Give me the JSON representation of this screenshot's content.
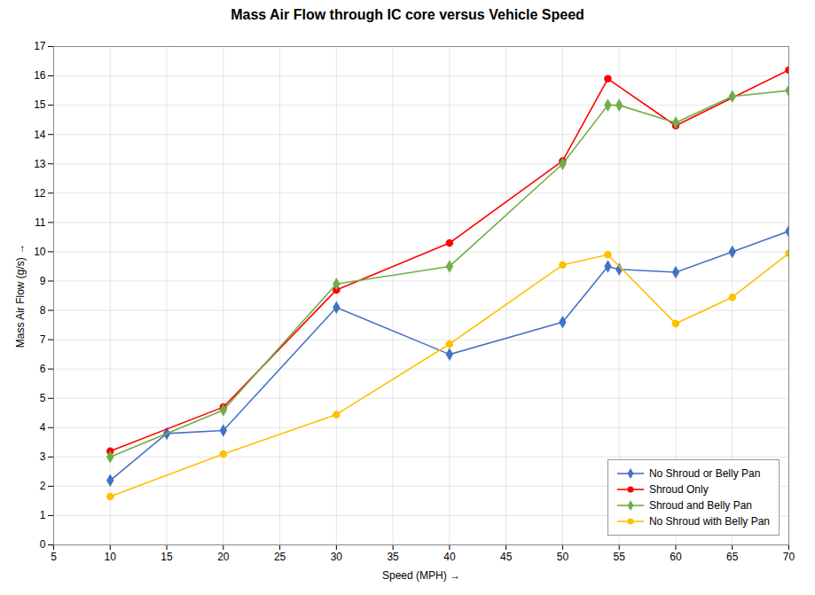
{
  "chart_data": {
    "type": "line",
    "title": "Mass Air Flow through IC core versus Vehicle Speed",
    "x_label": "Speed (MPH)",
    "y_label": "Mass Air Flow (g/s)",
    "xlim": [
      5,
      70
    ],
    "ylim": [
      0,
      17
    ],
    "xticks": [
      5,
      10,
      15,
      20,
      25,
      30,
      35,
      40,
      45,
      50,
      55,
      60,
      65,
      70
    ],
    "yticks": [
      0,
      1,
      2,
      3,
      4,
      5,
      6,
      7,
      8,
      9,
      10,
      11,
      12,
      13,
      14,
      15,
      16,
      17
    ],
    "grid": true,
    "legend": "lower right",
    "series": [
      {
        "name": "No Shroud or Belly Pan",
        "color": "#4472C4",
        "marker": "diamond",
        "x": [
          10,
          15,
          20,
          30,
          40,
          50,
          54,
          55,
          60,
          65,
          70
        ],
        "values": [
          2.2,
          3.8,
          3.9,
          8.1,
          6.5,
          7.6,
          9.5,
          9.4,
          9.3,
          10.0,
          10.7
        ]
      },
      {
        "name": "Shroud Only",
        "color": "#FF0000",
        "marker": "circle",
        "x": [
          10,
          20,
          30,
          40,
          50,
          54,
          60,
          70
        ],
        "values": [
          3.2,
          4.7,
          8.7,
          10.3,
          13.1,
          15.9,
          14.3,
          16.2
        ]
      },
      {
        "name": "Shroud and Belly Pan",
        "color": "#70AD47",
        "marker": "diamond",
        "x": [
          10,
          20,
          30,
          40,
          50,
          54,
          55,
          60,
          65,
          70
        ],
        "values": [
          3.0,
          4.6,
          8.9,
          9.5,
          13.0,
          15.0,
          15.0,
          14.4,
          15.3,
          15.5
        ]
      },
      {
        "name": "No Shroud with Belly Pan",
        "color": "#FFC000",
        "marker": "circle",
        "x": [
          10,
          20,
          30,
          40,
          50,
          54,
          60,
          65,
          70
        ],
        "values": [
          1.65,
          3.1,
          4.45,
          6.85,
          9.55,
          9.9,
          7.55,
          8.45,
          9.95
        ]
      }
    ]
  }
}
